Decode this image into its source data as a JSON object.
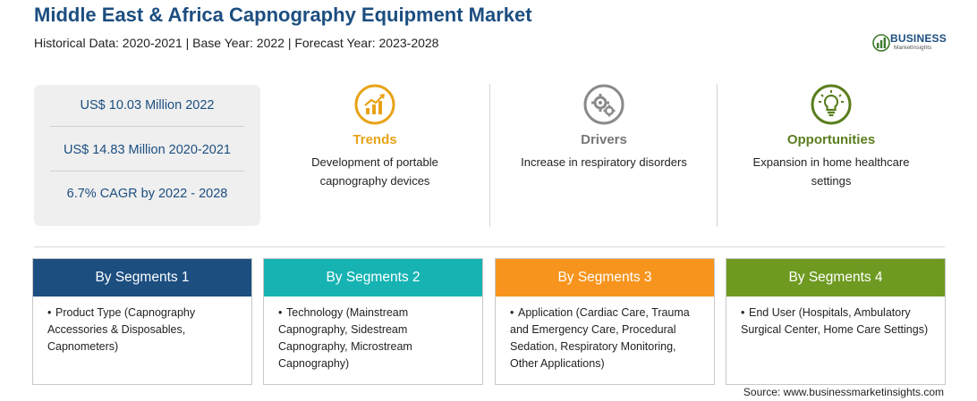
{
  "header": {
    "title": "Middle East & Africa Capnography Equipment Market",
    "subtitle": "Historical Data: 2020-2021 | Base Year: 2022 | Forecast Year: 2023-2028"
  },
  "logo": {
    "name": "BUSINESS",
    "tagline": "MarketInsights"
  },
  "stats": [
    "US$ 10.03 Million 2022",
    "US$ 14.83 Million 2020-2021",
    "6.7% CAGR by 2022 - 2028"
  ],
  "columns": [
    {
      "title": "Trends",
      "text": "Development of portable capnography devices",
      "color": "#e8a317",
      "icon": "trend-chart-icon"
    },
    {
      "title": "Drivers",
      "text": "Increase in respiratory disorders",
      "color": "#777777",
      "icon": "gears-icon"
    },
    {
      "title": "Opportunities",
      "text": "Expansion in home healthcare settings",
      "color": "#5a7e1e",
      "icon": "lightbulb-icon"
    }
  ],
  "segments": [
    {
      "title": "By Segments 1",
      "color": "#1c4e80",
      "text": "Product Type (Capnography Accessories & Disposables, Capnometers)"
    },
    {
      "title": "By Segments 2",
      "color": "#17b3b3",
      "text": "Technology (Mainstream Capnography, Sidestream Capnography, Microstream Capnography)"
    },
    {
      "title": "By Segments 3",
      "color": "#f7941d",
      "text": "Application (Cardiac Care, Trauma and Emergency Care, Procedural Sedation, Respiratory Monitoring, Other Applications)"
    },
    {
      "title": "By Segments 4",
      "color": "#6e9a22",
      "text": "End User (Hospitals, Ambulatory Surgical Center, Home Care Settings)"
    }
  ],
  "source": "Source: www.businessmarketinsights.com"
}
